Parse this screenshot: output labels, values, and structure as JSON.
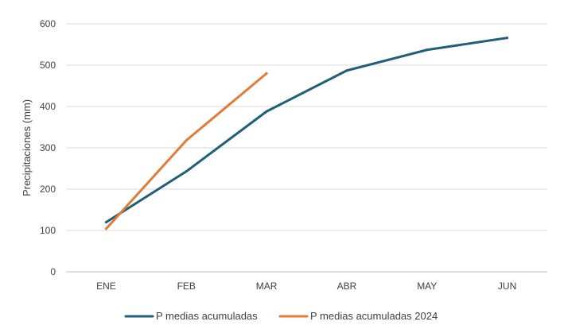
{
  "chart_data": {
    "type": "line",
    "title": "",
    "xlabel": "",
    "ylabel": "Precipitaciones (mm)",
    "categories": [
      "ENE",
      "FEB",
      "MAR",
      "ABR",
      "MAY",
      "JUN"
    ],
    "ylim": [
      0,
      600
    ],
    "yticks": [
      0,
      100,
      200,
      300,
      400,
      500,
      600
    ],
    "grid": true,
    "legend_position": "bottom",
    "series": [
      {
        "name": "P  medias acumuladas",
        "color": "#1f5f7a",
        "values": [
          120,
          243,
          388,
          487,
          537,
          566
        ]
      },
      {
        "name": "P medias acumuladas  2024",
        "color": "#e07b39",
        "values": [
          104,
          318,
          480,
          null,
          null,
          null
        ]
      }
    ]
  }
}
